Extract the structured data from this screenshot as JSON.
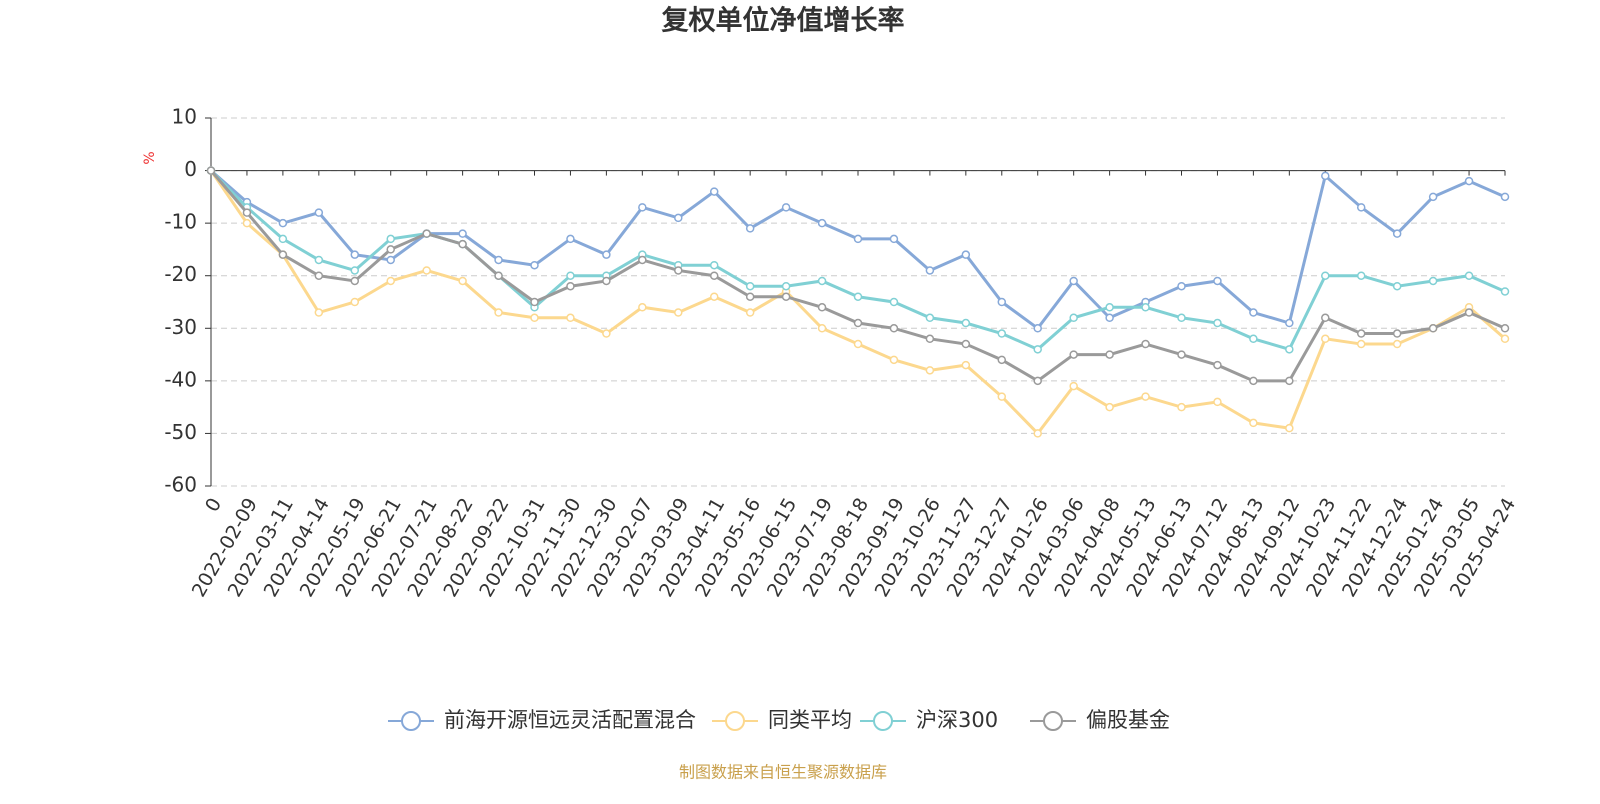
{
  "chart_data": {
    "type": "line",
    "title": "复权单位净值增长率",
    "y_label": "%",
    "source": "制图数据来自恒生聚源数据库",
    "categories": [
      "0",
      "2022-02-09",
      "2022-03-11",
      "2022-04-14",
      "2022-05-19",
      "2022-06-21",
      "2022-07-21",
      "2022-08-22",
      "2022-09-22",
      "2022-10-31",
      "2022-11-30",
      "2022-12-30",
      "2023-02-07",
      "2023-03-09",
      "2023-04-11",
      "2023-05-16",
      "2023-06-15",
      "2023-07-19",
      "2023-08-18",
      "2023-09-19",
      "2023-10-26",
      "2023-11-27",
      "2023-12-27",
      "2024-01-26",
      "2024-03-06",
      "2024-04-08",
      "2024-05-13",
      "2024-06-13",
      "2024-07-12",
      "2024-08-13",
      "2024-09-12",
      "2024-10-23",
      "2024-11-22",
      "2024-12-24",
      "2025-01-24",
      "2025-03-05",
      "2025-04-24"
    ],
    "series": [
      {
        "name": "前海开源恒远灵活配置混合",
        "color": "#86a8d8",
        "values": [
          0,
          -6,
          -10,
          -8,
          -16,
          -17,
          -12,
          -12,
          -17,
          -18,
          -13,
          -16,
          -7,
          -9,
          -4,
          -11,
          -7,
          -10,
          -13,
          -13,
          -19,
          -16,
          -25,
          -30,
          -21,
          -28,
          -25,
          -22,
          -21,
          -27,
          -29,
          -1,
          -7,
          -12,
          -5,
          -2,
          -5
        ]
      },
      {
        "name": "同类平均",
        "color": "#fcd88e",
        "values": [
          0,
          -10,
          -16,
          -27,
          -25,
          -21,
          -19,
          -21,
          -27,
          -28,
          -28,
          -31,
          -26,
          -27,
          -24,
          -27,
          -23,
          -30,
          -33,
          -36,
          -38,
          -37,
          -43,
          -50,
          -41,
          -45,
          -43,
          -45,
          -44,
          -48,
          -49,
          -32,
          -33,
          -33,
          -30,
          -26,
          -32
        ]
      },
      {
        "name": "沪深300",
        "color": "#80d0d4",
        "values": [
          0,
          -7,
          -13,
          -17,
          -19,
          -13,
          -12,
          -14,
          -20,
          -26,
          -20,
          -20,
          -16,
          -18,
          -18,
          -22,
          -22,
          -21,
          -24,
          -25,
          -28,
          -29,
          -31,
          -34,
          -28,
          -26,
          -26,
          -28,
          -29,
          -32,
          -34,
          -20,
          -20,
          -22,
          -21,
          -20,
          -23
        ]
      },
      {
        "name": "偏股基金",
        "color": "#9a9a9a",
        "values": [
          0,
          -8,
          -16,
          -20,
          -21,
          -15,
          -12,
          -14,
          -20,
          -25,
          -22,
          -21,
          -17,
          -19,
          -20,
          -24,
          -24,
          -26,
          -29,
          -30,
          -32,
          -33,
          -36,
          -40,
          -35,
          -35,
          -33,
          -35,
          -37,
          -40,
          -40,
          -28,
          -31,
          -31,
          -30,
          -27,
          -30
        ]
      }
    ],
    "ylim": [
      -60,
      10
    ],
    "yticks": [
      -60,
      -50,
      -40,
      -30,
      -20,
      -10,
      0,
      10
    ],
    "grid": true
  }
}
